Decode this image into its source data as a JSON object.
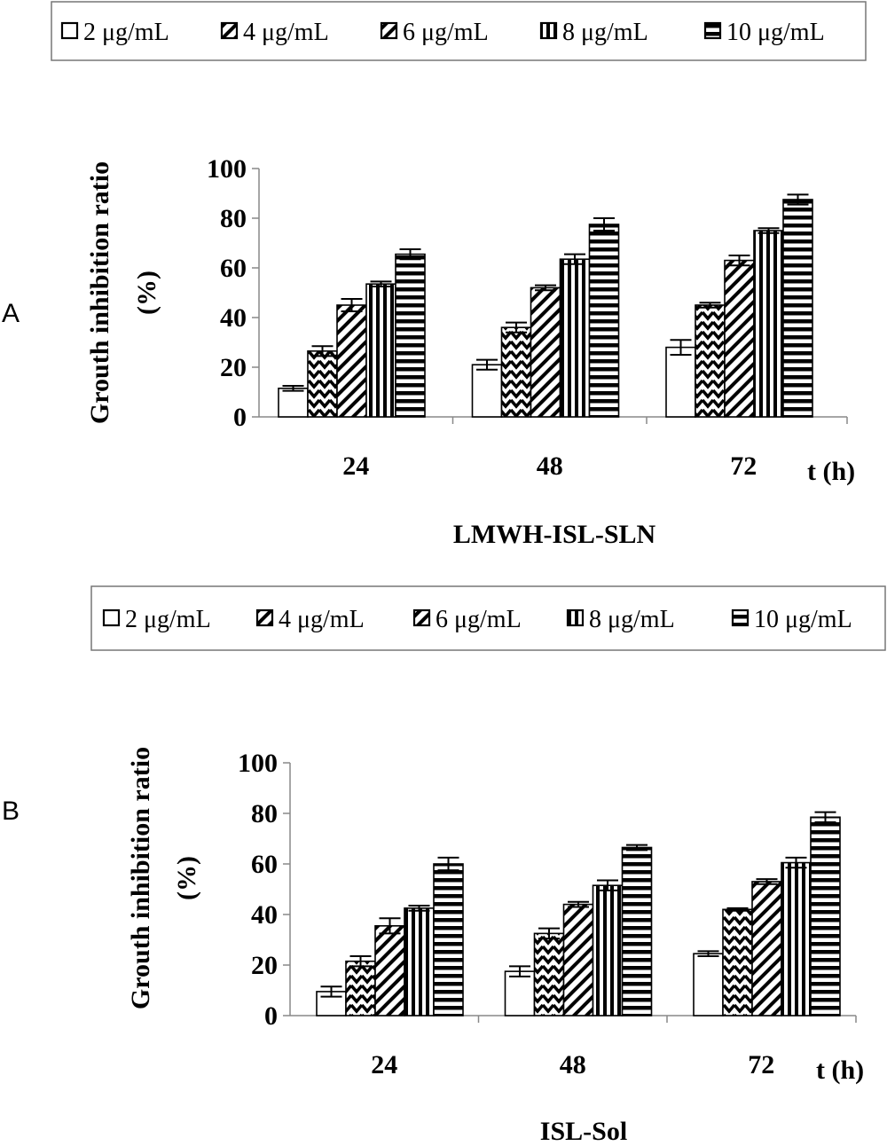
{
  "chart_data": [
    {
      "type": "bar",
      "panel_label": "A",
      "title": "",
      "xlabel": "LMWH-ISL-SLN",
      "xunit_label": "t (h)",
      "ylabel": "Grouth inhibition ratio",
      "ylabel_unit": "(%)",
      "categories": [
        "24",
        "48",
        "72"
      ],
      "yticks": [
        "0",
        "20",
        "40",
        "60",
        "80",
        "100"
      ],
      "ylim": [
        0,
        100
      ],
      "legend_position": "top",
      "series": [
        {
          "name": "2 μg/mL",
          "values": [
            11.5,
            21,
            28
          ],
          "errors": [
            1,
            2,
            3
          ],
          "pattern": "blank"
        },
        {
          "name": "4 μg/mL",
          "values": [
            26.5,
            36,
            45
          ],
          "errors": [
            2,
            2,
            1
          ],
          "pattern": "chevron"
        },
        {
          "name": "6 μg/mL",
          "values": [
            45,
            52,
            63
          ],
          "errors": [
            2.5,
            1,
            2
          ],
          "pattern": "diagonal"
        },
        {
          "name": "8 μg/mL",
          "values": [
            53.5,
            63.5,
            75
          ],
          "errors": [
            1,
            2,
            1
          ],
          "pattern": "vertical"
        },
        {
          "name": "10 μg/mL",
          "values": [
            65.5,
            77.5,
            87.5
          ],
          "errors": [
            2,
            2.5,
            2
          ],
          "pattern": "horizontal"
        }
      ]
    },
    {
      "type": "bar",
      "panel_label": "B",
      "title": "",
      "xlabel": "ISL-Sol",
      "xunit_label": "t (h)",
      "ylabel": "Grouth inhibition ratio",
      "ylabel_unit": "(%)",
      "categories": [
        "24",
        "48",
        "72"
      ],
      "yticks": [
        "0",
        "20",
        "40",
        "60",
        "80",
        "100"
      ],
      "ylim": [
        0,
        100
      ],
      "legend_position": "top",
      "series": [
        {
          "name": "2 μg/mL",
          "values": [
            9.5,
            17.5,
            24.5
          ],
          "errors": [
            2,
            2,
            1
          ],
          "pattern": "blank"
        },
        {
          "name": "4 μg/mL",
          "values": [
            21.5,
            32.5,
            42
          ],
          "errors": [
            2,
            2,
            0.5
          ],
          "pattern": "chevron"
        },
        {
          "name": "6 μg/mL",
          "values": [
            35.5,
            44,
            53
          ],
          "errors": [
            3,
            1,
            1
          ],
          "pattern": "diagonal"
        },
        {
          "name": "8 μg/mL",
          "values": [
            42.5,
            51.5,
            60.5
          ],
          "errors": [
            1,
            2,
            2
          ],
          "pattern": "vertical"
        },
        {
          "name": "10 μg/mL",
          "values": [
            60,
            66.5,
            78.5
          ],
          "errors": [
            2.5,
            1,
            2
          ],
          "pattern": "horizontal"
        }
      ]
    }
  ]
}
